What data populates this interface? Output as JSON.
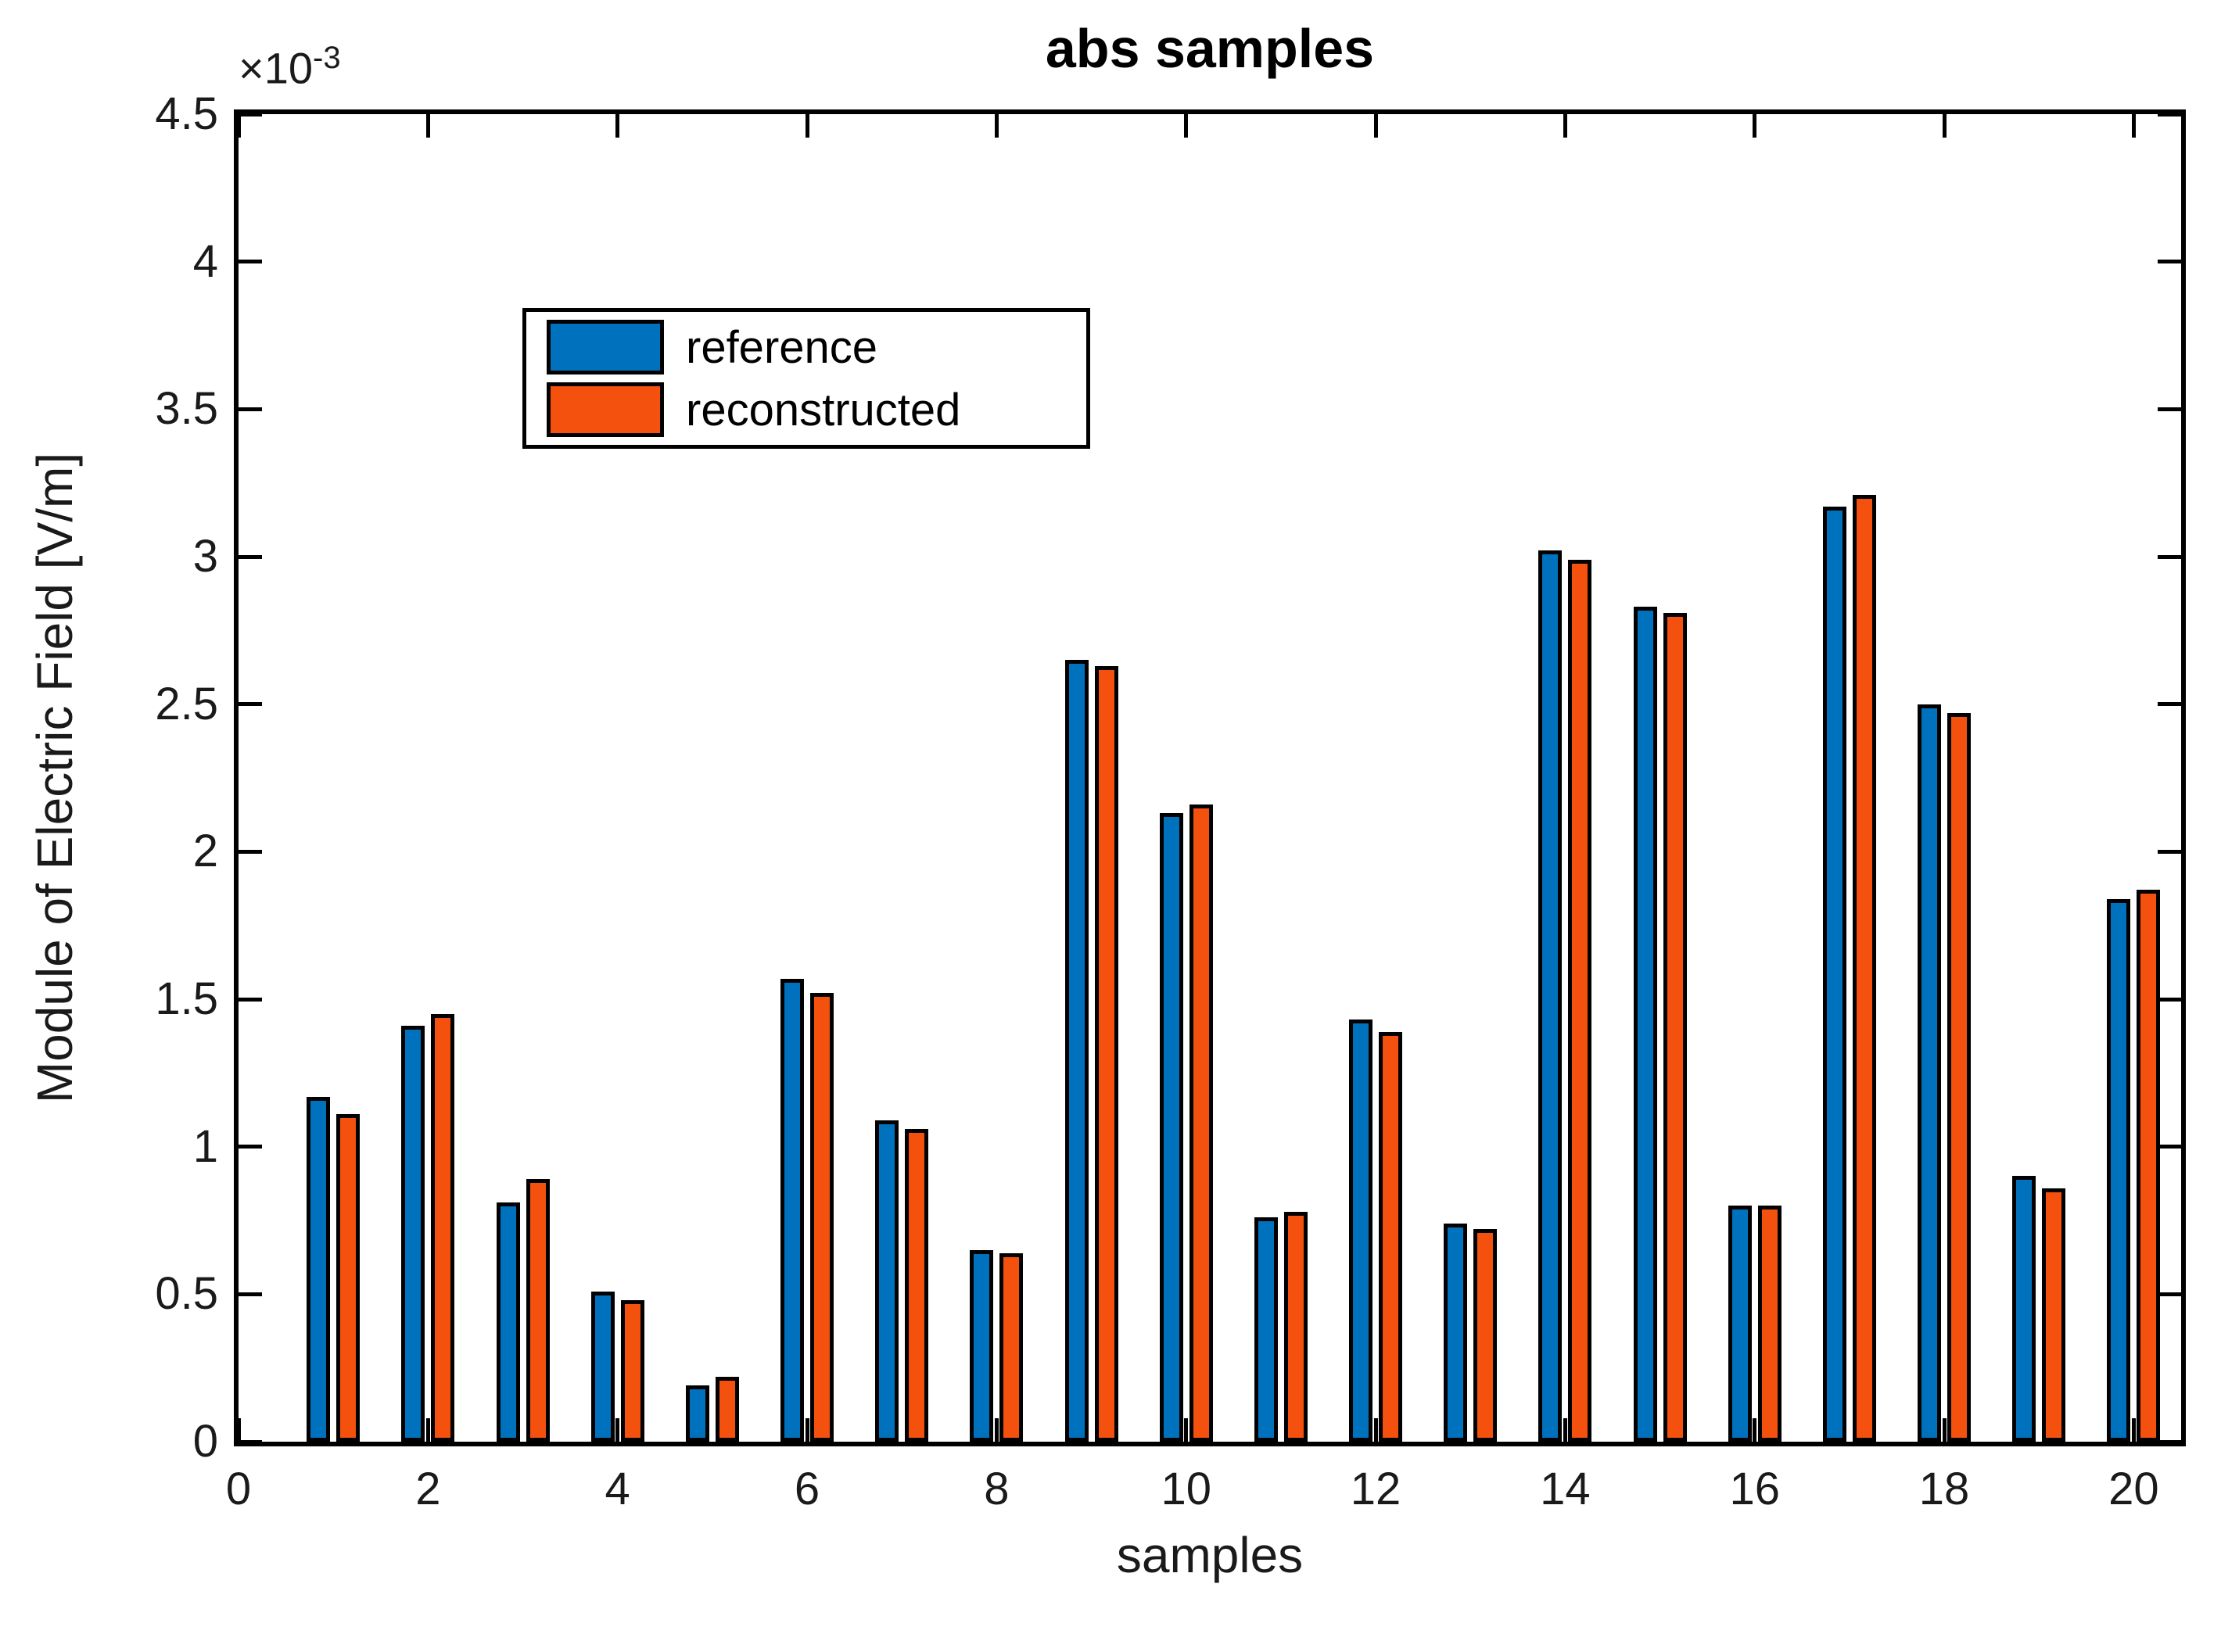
{
  "figure": {
    "title": "abs samples",
    "exponent_base": "×10",
    "exponent_power": "-3",
    "xlabel": "samples",
    "ylabel": "Module of Electric Field [V/m]"
  },
  "legend": {
    "position": "top-left",
    "entries": [
      {
        "label": "reference",
        "color": "#0072BD"
      },
      {
        "label": "reconstructed",
        "color": "#F4500E"
      }
    ]
  },
  "chart_data": {
    "type": "bar",
    "title": "abs samples",
    "xlabel": "samples",
    "ylabel": "Module of Electric Field [V/m]",
    "y_unit_multiplier": "1e-3",
    "y_unit": "V/m",
    "grid": false,
    "background": "#FFFFFF",
    "axis_color": "#000000",
    "bar_outline_color": "#000000",
    "legend_position": "top-left",
    "xlim": [
      0,
      20.5
    ],
    "ylim": [
      0,
      4.5
    ],
    "categories": [
      1,
      2,
      3,
      4,
      5,
      6,
      7,
      8,
      9,
      10,
      11,
      12,
      13,
      14,
      15,
      16,
      17,
      18,
      19,
      20
    ],
    "series": [
      {
        "name": "reference",
        "color": "#0072BD",
        "values": [
          1.17,
          1.41,
          0.81,
          0.51,
          0.19,
          1.57,
          1.09,
          0.65,
          2.65,
          2.13,
          0.76,
          1.43,
          0.74,
          3.02,
          2.83,
          0.8,
          3.17,
          2.5,
          0.9,
          1.84
        ]
      },
      {
        "name": "reconstructed",
        "color": "#F4500E",
        "values": [
          1.11,
          1.45,
          0.89,
          0.48,
          0.22,
          1.52,
          1.06,
          0.64,
          2.63,
          2.16,
          0.78,
          1.39,
          0.72,
          2.99,
          2.81,
          0.8,
          3.21,
          2.47,
          0.86,
          1.87
        ]
      }
    ],
    "xticks": {
      "values": [
        0,
        2,
        4,
        6,
        8,
        10,
        12,
        14,
        16,
        18,
        20
      ],
      "labels": [
        "0",
        "2",
        "4",
        "6",
        "8",
        "10",
        "12",
        "14",
        "16",
        "18",
        "20"
      ]
    },
    "yticks": {
      "values": [
        0,
        0.5,
        1,
        1.5,
        2,
        2.5,
        3,
        3.5,
        4,
        4.5
      ],
      "labels": [
        "0",
        "0.5",
        "1",
        "1.5",
        "2",
        "2.5",
        "3",
        "3.5",
        "4",
        "4.5"
      ]
    }
  }
}
